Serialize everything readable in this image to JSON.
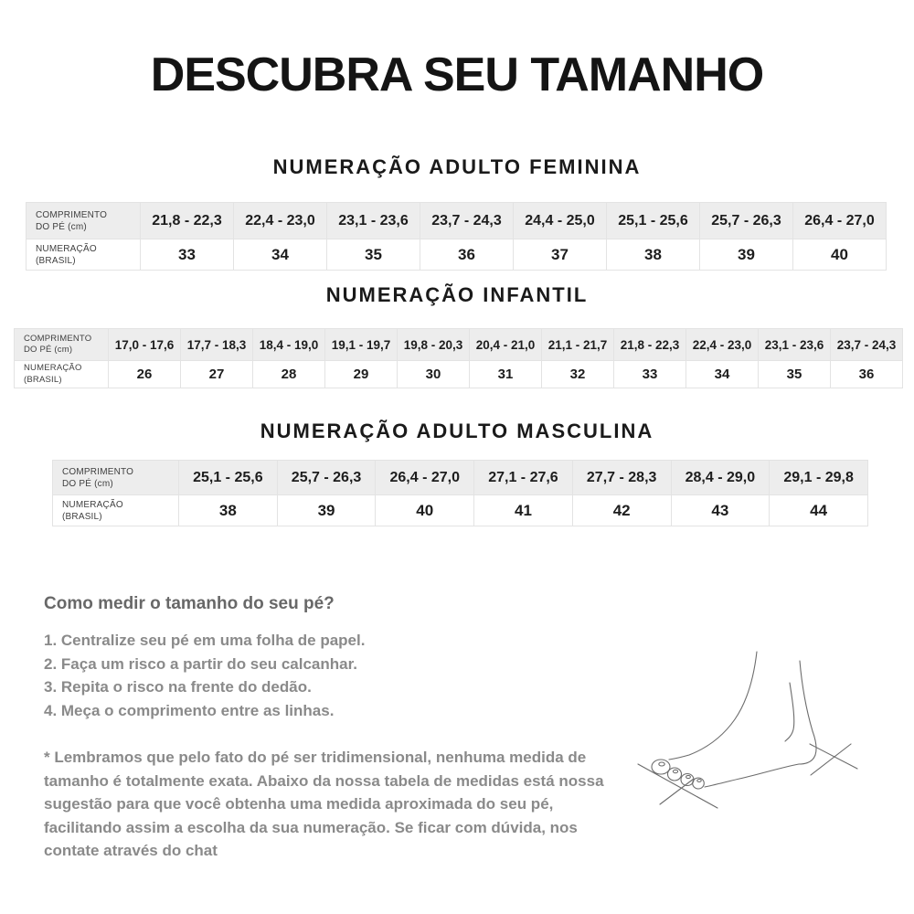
{
  "title": "DESCUBRA SEU TAMANHO",
  "row_labels": {
    "length_line1": "COMPRIMENTO",
    "length_line2": "DO PÉ (cm)",
    "size_line1": "NUMERAÇÃO",
    "size_line2": "(BRASIL)"
  },
  "tables": [
    {
      "id": "adulto-feminina",
      "heading": "NUMERAÇÃO ADULTO FEMININA",
      "lengths": [
        "21,8 - 22,3",
        "22,4 - 23,0",
        "23,1 - 23,6",
        "23,7 - 24,3",
        "24,4 - 25,0",
        "25,1 - 25,6",
        "25,7 - 26,3",
        "26,4 - 27,0"
      ],
      "sizes": [
        "33",
        "34",
        "35",
        "36",
        "37",
        "38",
        "39",
        "40"
      ]
    },
    {
      "id": "infantil",
      "heading": "NUMERAÇÃO INFANTIL",
      "lengths": [
        "17,0 - 17,6",
        "17,7 - 18,3",
        "18,4 - 19,0",
        "19,1 - 19,7",
        "19,8 - 20,3",
        "20,4 - 21,0",
        "21,1 - 21,7",
        "21,8 - 22,3",
        "22,4 - 23,0",
        "23,1 - 23,6",
        "23,7 - 24,3"
      ],
      "sizes": [
        "26",
        "27",
        "28",
        "29",
        "30",
        "31",
        "32",
        "33",
        "34",
        "35",
        "36"
      ]
    },
    {
      "id": "adulto-masculina",
      "heading": "NUMERAÇÃO ADULTO MASCULINA",
      "lengths": [
        "25,1 - 25,6",
        "25,7 - 26,3",
        "26,4 - 27,0",
        "27,1 - 27,6",
        "27,7 - 28,3",
        "28,4 - 29,0",
        "29,1 - 29,8"
      ],
      "sizes": [
        "38",
        "39",
        "40",
        "41",
        "42",
        "43",
        "44"
      ]
    }
  ],
  "how_to": {
    "heading": "Como medir o tamanho do seu pé?",
    "steps": [
      "1. Centralize seu pé em uma folha de papel.",
      "2. Faça um risco a partir do seu calcanhar.",
      "3. Repita o risco na frente do dedão.",
      "4. Meça o comprimento entre as linhas."
    ]
  },
  "footnote": "* Lembramos que pelo fato do pé ser tridimensional, nenhuma medida de tamanho é totalmente exata. Abaixo da nossa tabela de medidas está nossa sugestão para que você obtenha uma medida aproximada do seu pé, facilitando assim a escolha da sua numeração. Se ficar com dúvida, nos contate através do chat",
  "colors": {
    "table_header_bg": "#ededed",
    "table_border": "#e3e3e3",
    "text_dark": "#1a1a1a",
    "text_gray": "#8a8a8a"
  },
  "illustration": "foot-line-drawing"
}
